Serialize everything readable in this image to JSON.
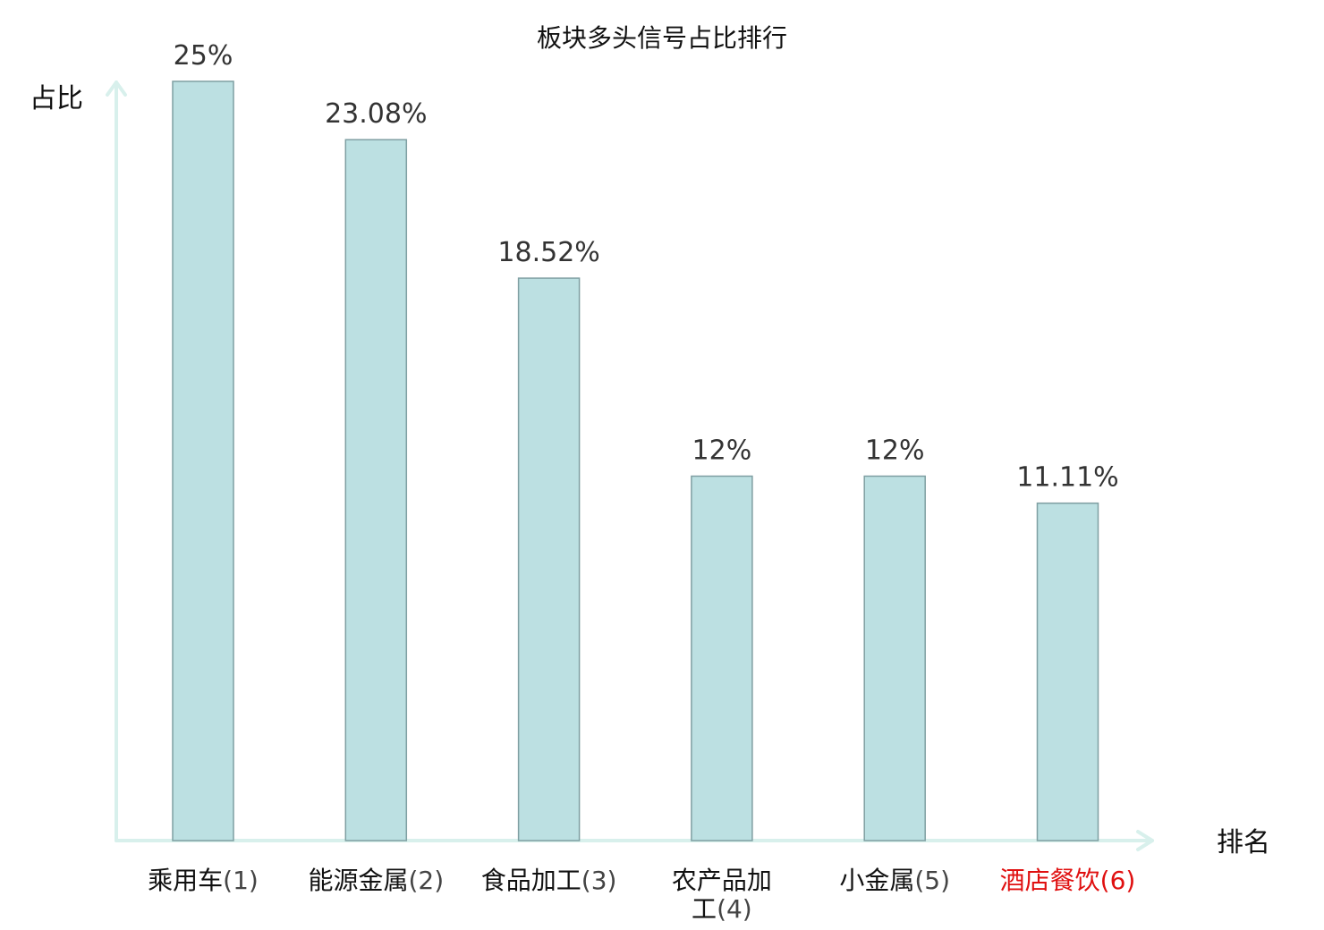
{
  "chart_data": {
    "type": "bar",
    "title": "板块多头信号占比排行",
    "ylabel": "占比",
    "xlabel": "排名",
    "categories": [
      "乘用车",
      "能源金属",
      "食品加工",
      "农产品加工",
      "小金属",
      "酒店餐饮"
    ],
    "ranks": [
      "(1)",
      "(2)",
      "(3)",
      "(4)",
      "(5)",
      "(6)"
    ],
    "values": [
      25,
      23.08,
      18.52,
      12,
      12,
      11.11
    ],
    "value_labels": [
      "25%",
      "23.08%",
      "18.52%",
      "12%",
      "12%",
      "11.11%"
    ],
    "highlight_index": 5,
    "ylim": [
      0,
      25
    ],
    "grid": false,
    "y_ticks_shown": false
  },
  "colors": {
    "bar_fill": "#bce0e2",
    "bar_stroke": "#7f9fa2",
    "axis": "#d8f0ec",
    "highlight_text": "#e01010"
  }
}
